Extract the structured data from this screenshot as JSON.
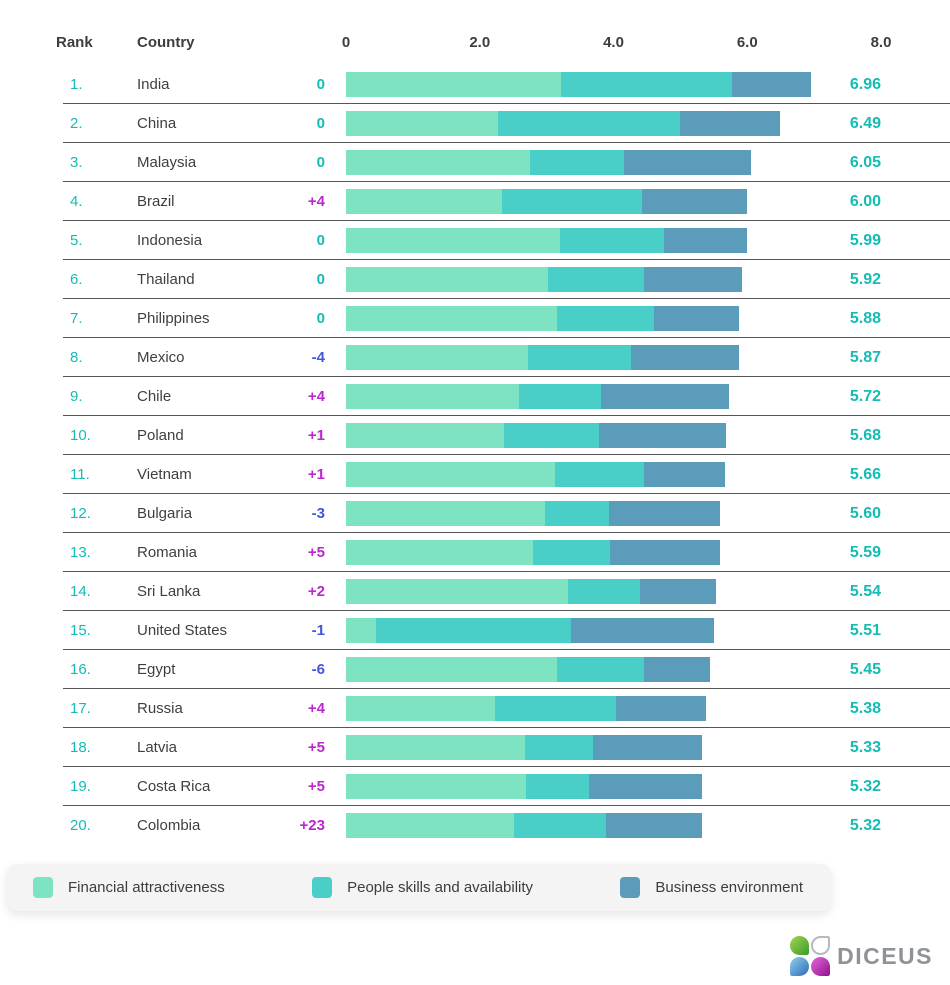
{
  "header": {
    "rank_label": "Rank",
    "country_label": "Country",
    "axis_ticks": [
      "0",
      "2.0",
      "4.0",
      "6.0",
      "8.0"
    ]
  },
  "chart_data": {
    "type": "bar",
    "stacked": true,
    "orientation": "horizontal",
    "xlim": [
      0,
      8
    ],
    "axis_tick_values": [
      0,
      2,
      4,
      6,
      8
    ],
    "series_names": [
      "Financial attractiveness",
      "People skills and availability",
      "Business environment"
    ],
    "series_colors": [
      "#7de3c3",
      "#49cfc8",
      "#5b9cba"
    ],
    "rows": [
      {
        "rank": "1.",
        "country": "India",
        "change": "0",
        "change_type": "zero",
        "values": [
          3.22,
          2.55,
          1.19
        ],
        "total": "6.96"
      },
      {
        "rank": "2.",
        "country": "China",
        "change": "0",
        "change_type": "zero",
        "values": [
          2.28,
          2.71,
          1.5
        ],
        "total": "6.49"
      },
      {
        "rank": "3.",
        "country": "Malaysia",
        "change": "0",
        "change_type": "zero",
        "values": [
          2.75,
          1.4,
          1.9
        ],
        "total": "6.05"
      },
      {
        "rank": "4.",
        "country": "Brazil",
        "change": "+4",
        "change_type": "up",
        "values": [
          2.33,
          2.09,
          1.58
        ],
        "total": "6.00"
      },
      {
        "rank": "5.",
        "country": "Indonesia",
        "change": "0",
        "change_type": "zero",
        "values": [
          3.2,
          1.56,
          1.23
        ],
        "total": "5.99"
      },
      {
        "rank": "6.",
        "country": "Thailand",
        "change": "0",
        "change_type": "zero",
        "values": [
          3.02,
          1.44,
          1.46
        ],
        "total": "5.92"
      },
      {
        "rank": "7.",
        "country": "Philippines",
        "change": "0",
        "change_type": "zero",
        "values": [
          3.15,
          1.46,
          1.27
        ],
        "total": "5.88"
      },
      {
        "rank": "8.",
        "country": "Mexico",
        "change": "-4",
        "change_type": "down",
        "values": [
          2.72,
          1.54,
          1.61
        ],
        "total": "5.87"
      },
      {
        "rank": "9.",
        "country": "Chile",
        "change": "+4",
        "change_type": "up",
        "values": [
          2.58,
          1.24,
          1.9
        ],
        "total": "5.72"
      },
      {
        "rank": "10.",
        "country": "Poland",
        "change": "+1",
        "change_type": "up",
        "values": [
          2.36,
          1.43,
          1.89
        ],
        "total": "5.68"
      },
      {
        "rank": "11.",
        "country": "Vietnam",
        "change": "+1",
        "change_type": "up",
        "values": [
          3.13,
          1.33,
          1.2
        ],
        "total": "5.66"
      },
      {
        "rank": "12.",
        "country": "Bulgaria",
        "change": "-3",
        "change_type": "down",
        "values": [
          2.97,
          0.97,
          1.66
        ],
        "total": "5.60"
      },
      {
        "rank": "13.",
        "country": "Romania",
        "change": "+5",
        "change_type": "up",
        "values": [
          2.79,
          1.16,
          1.64
        ],
        "total": "5.59"
      },
      {
        "rank": "14.",
        "country": "Sri Lanka",
        "change": "+2",
        "change_type": "up",
        "values": [
          3.32,
          1.08,
          1.14
        ],
        "total": "5.54"
      },
      {
        "rank": "15.",
        "country": "United States",
        "change": "-1",
        "change_type": "down",
        "values": [
          0.45,
          2.91,
          2.15
        ],
        "total": "5.51"
      },
      {
        "rank": "16.",
        "country": "Egypt",
        "change": "-6",
        "change_type": "down",
        "values": [
          3.15,
          1.31,
          0.99
        ],
        "total": "5.45"
      },
      {
        "rank": "17.",
        "country": "Russia",
        "change": "+4",
        "change_type": "up",
        "values": [
          2.23,
          1.8,
          1.35
        ],
        "total": "5.38"
      },
      {
        "rank": "18.",
        "country": "Latvia",
        "change": "+5",
        "change_type": "up",
        "values": [
          2.68,
          1.01,
          1.64
        ],
        "total": "5.33"
      },
      {
        "rank": "19.",
        "country": "Costa Rica",
        "change": "+5",
        "change_type": "up",
        "values": [
          2.69,
          0.94,
          1.69
        ],
        "total": "5.32"
      },
      {
        "rank": "20.",
        "country": "Colombia",
        "change": "+23",
        "change_type": "up",
        "values": [
          2.51,
          1.38,
          1.43
        ],
        "total": "5.32"
      }
    ]
  },
  "legend": {
    "items": [
      {
        "label": "Financial attractiveness",
        "color": "#7de3c3"
      },
      {
        "label": "People skills and availability",
        "color": "#49cfc8"
      },
      {
        "label": "Business environment",
        "color": "#5b9cba"
      }
    ]
  },
  "logo": {
    "text": "DICEUS"
  },
  "colors": {
    "score_teal": "#14bcb4",
    "change_positive": "#ba27cf",
    "change_negative": "#4156e0",
    "separator": "#555555",
    "text_dark": "#3f3f3f",
    "legend_bg": "#f4f4f5"
  }
}
